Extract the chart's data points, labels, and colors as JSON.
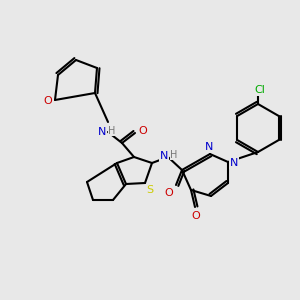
{
  "bg_color": "#e8e8e8",
  "atom_colors": {
    "C": "#000000",
    "N": "#0000cc",
    "O": "#cc0000",
    "S": "#cccc00",
    "Cl": "#00aa00",
    "H": "#777777"
  },
  "figsize": [
    3.0,
    3.0
  ],
  "dpi": 100
}
